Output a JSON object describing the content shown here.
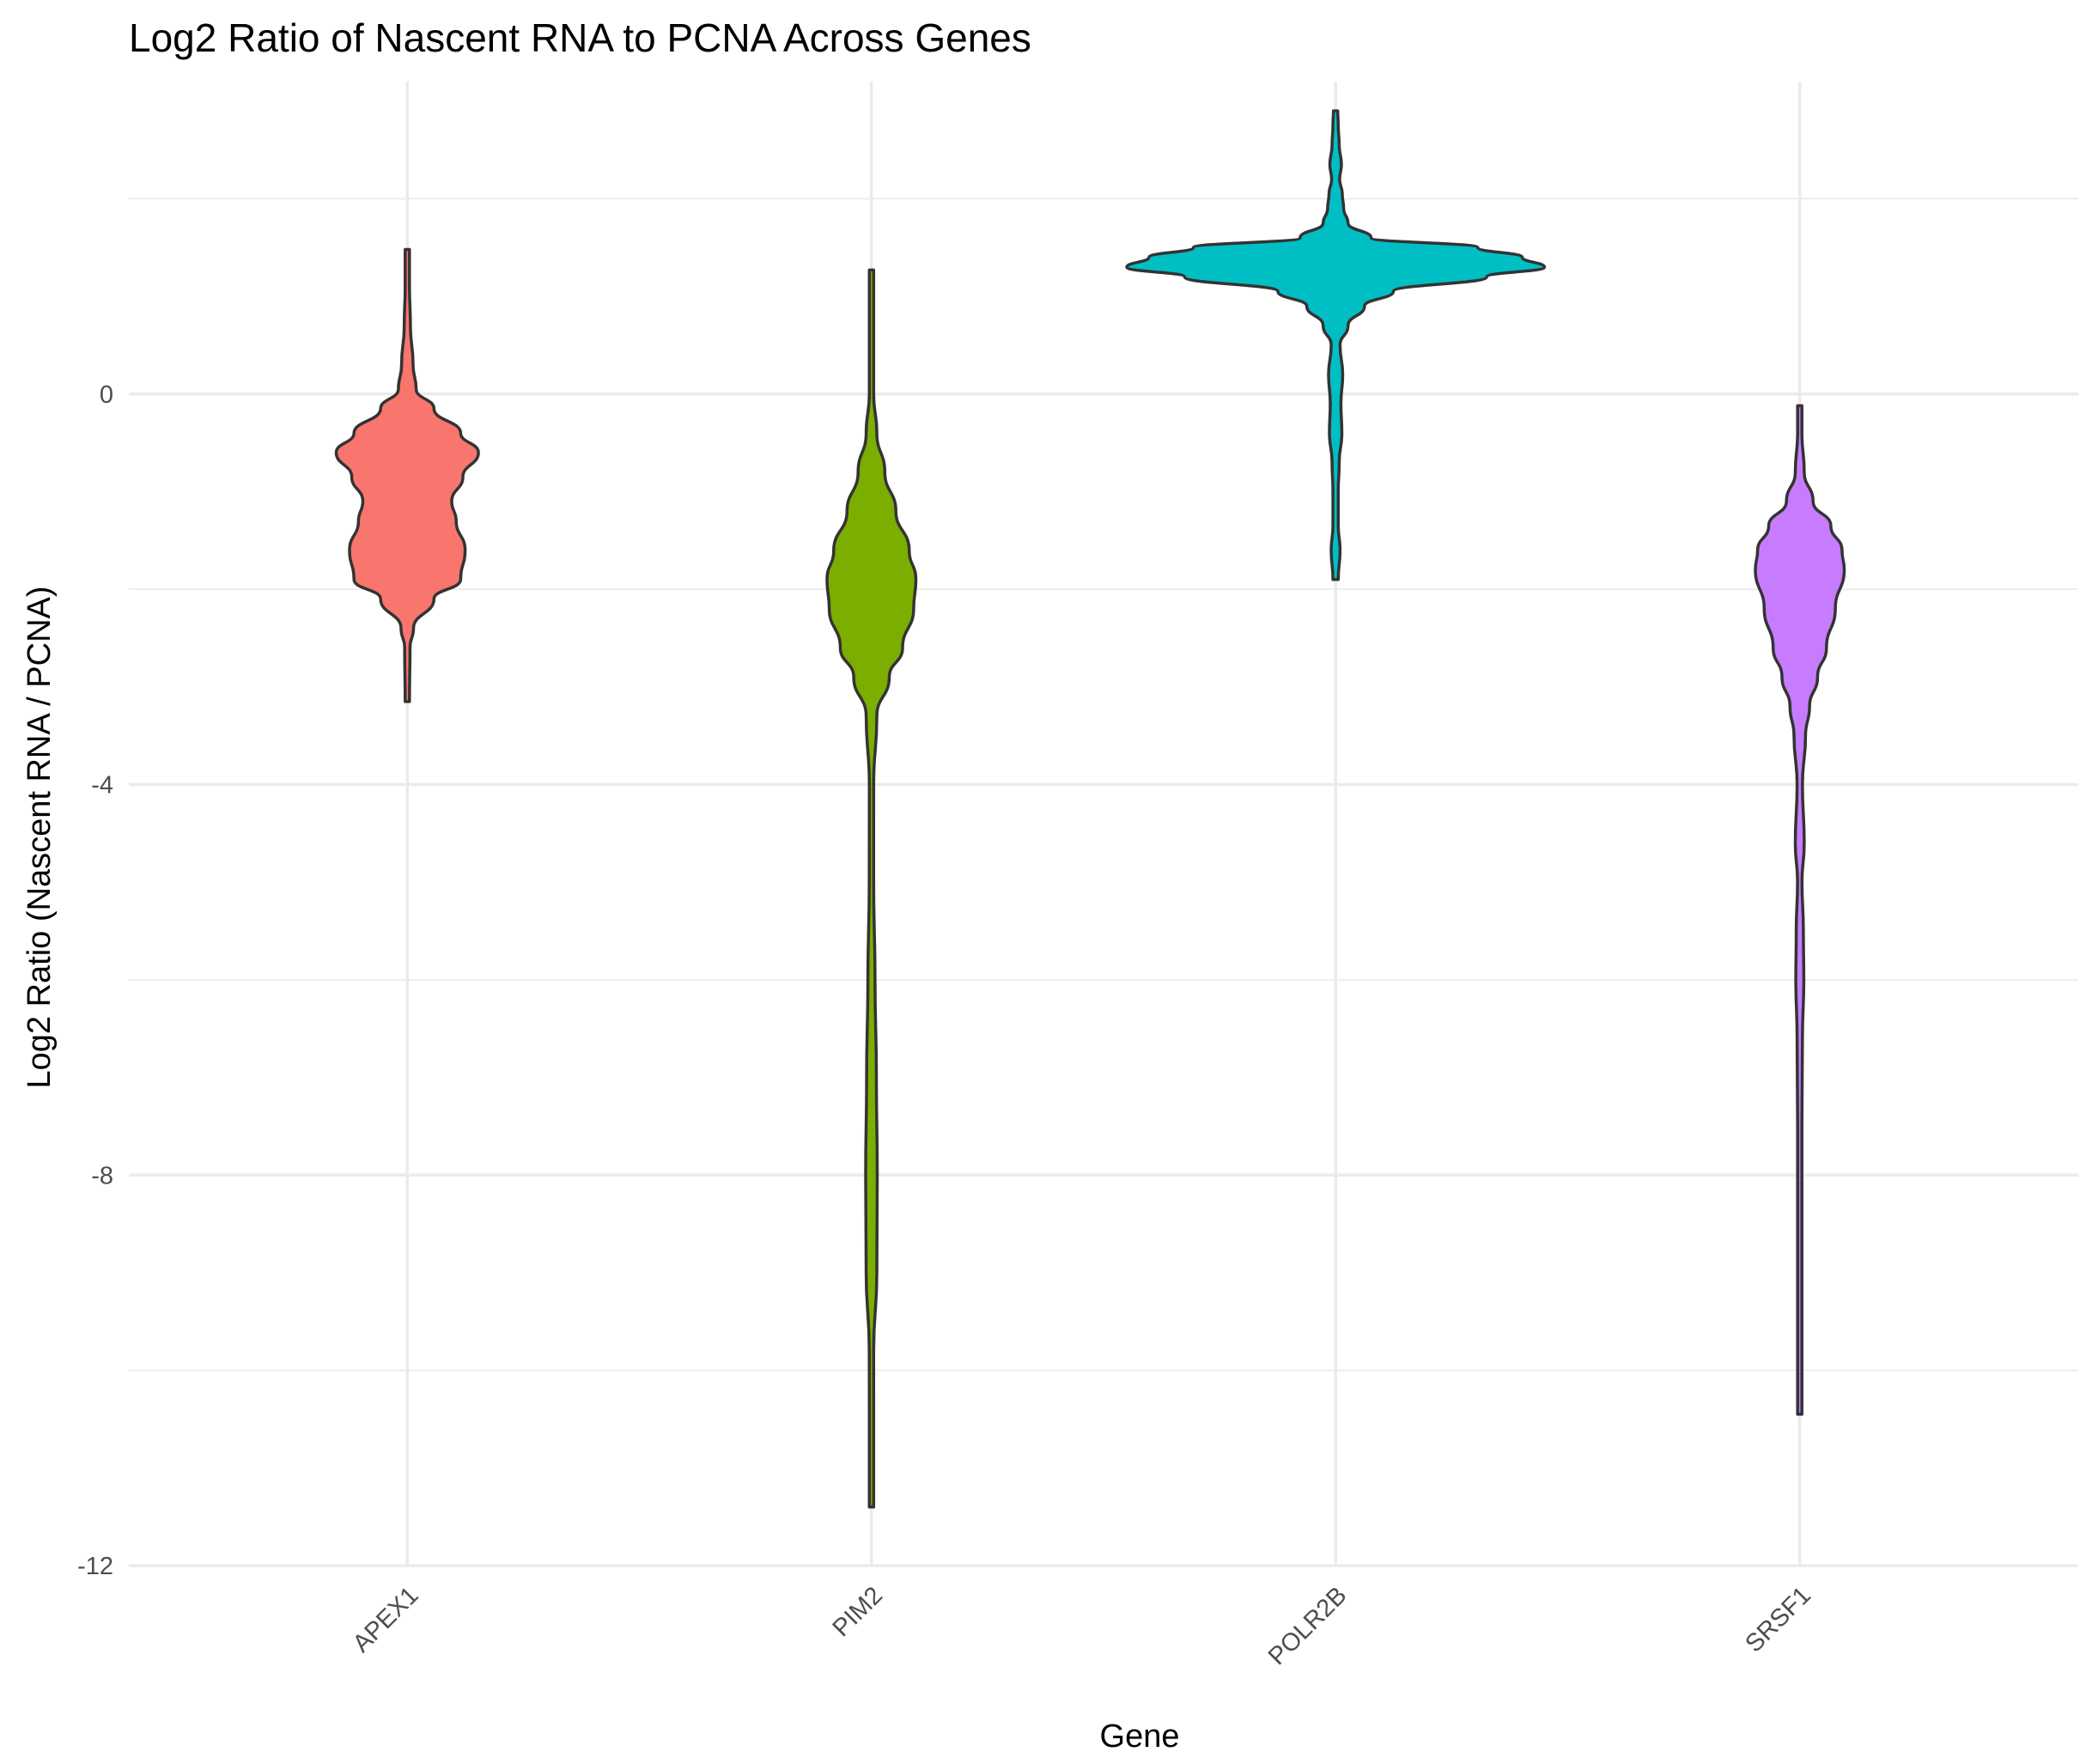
{
  "chart_data": {
    "type": "violin",
    "title": "Log2 Ratio of Nascent RNA to PCNA Across Genes",
    "xlabel": "Gene",
    "ylabel": "Log2 Ratio (Nascent RNA / PCNA)",
    "ylim": [
      -12,
      3.2
    ],
    "yticks": [
      0,
      -4,
      -8,
      -12
    ],
    "yticks_minor": [
      2,
      -2,
      -6,
      -10
    ],
    "grid": true,
    "legend": "none",
    "categories": [
      "APEX1",
      "PIM2",
      "POLR2B",
      "SRSF1"
    ],
    "series": [
      {
        "category": "APEX1",
        "color": "#F8766D",
        "min": -3.15,
        "max": 1.48,
        "density": [
          [
            -3.15,
            0.003
          ],
          [
            -2.6,
            0.006
          ],
          [
            -2.4,
            0.014
          ],
          [
            -2.1,
            0.06
          ],
          [
            -1.9,
            0.12
          ],
          [
            -1.6,
            0.13
          ],
          [
            -1.3,
            0.11
          ],
          [
            -1.1,
            0.1
          ],
          [
            -0.85,
            0.125
          ],
          [
            -0.6,
            0.16
          ],
          [
            -0.4,
            0.12
          ],
          [
            -0.15,
            0.06
          ],
          [
            0.05,
            0.02
          ],
          [
            0.3,
            0.013
          ],
          [
            0.7,
            0.007
          ],
          [
            1.1,
            0.004
          ],
          [
            1.48,
            0.002
          ]
        ]
      },
      {
        "category": "PIM2",
        "color": "#7CAE00",
        "min": -11.4,
        "max": 1.27,
        "density": [
          [
            -11.4,
            0.003
          ],
          [
            -10.5,
            0.003
          ],
          [
            -9.8,
            0.005
          ],
          [
            -9.0,
            0.012
          ],
          [
            -8.0,
            0.013
          ],
          [
            -7.0,
            0.011
          ],
          [
            -6.0,
            0.008
          ],
          [
            -5.0,
            0.005
          ],
          [
            -4.0,
            0.004
          ],
          [
            -3.3,
            0.012
          ],
          [
            -2.9,
            0.04
          ],
          [
            -2.6,
            0.07
          ],
          [
            -2.2,
            0.095
          ],
          [
            -1.9,
            0.1
          ],
          [
            -1.6,
            0.085
          ],
          [
            -1.2,
            0.055
          ],
          [
            -0.8,
            0.03
          ],
          [
            -0.4,
            0.012
          ],
          [
            0.0,
            0.004
          ],
          [
            0.6,
            0.002
          ],
          [
            1.27,
            0.0015
          ]
        ]
      },
      {
        "category": "POLR2B",
        "color": "#00BFC4",
        "min": -1.9,
        "max": 2.9,
        "density": [
          [
            -1.9,
            0.006
          ],
          [
            -1.6,
            0.01
          ],
          [
            -1.35,
            0.006
          ],
          [
            -1.0,
            0.006
          ],
          [
            -0.7,
            0.008
          ],
          [
            -0.4,
            0.014
          ],
          [
            -0.1,
            0.012
          ],
          [
            0.2,
            0.016
          ],
          [
            0.5,
            0.01
          ],
          [
            0.7,
            0.028
          ],
          [
            0.9,
            0.065
          ],
          [
            1.05,
            0.13
          ],
          [
            1.2,
            0.34
          ],
          [
            1.3,
            0.47
          ],
          [
            1.4,
            0.42
          ],
          [
            1.5,
            0.32
          ],
          [
            1.6,
            0.08
          ],
          [
            1.75,
            0.028
          ],
          [
            1.9,
            0.018
          ],
          [
            2.05,
            0.015
          ],
          [
            2.2,
            0.009
          ],
          [
            2.35,
            0.013
          ],
          [
            2.55,
            0.008
          ],
          [
            2.75,
            0.006
          ],
          [
            2.9,
            0.003
          ]
        ]
      },
      {
        "category": "SRSF1",
        "color": "#C77CFF",
        "min": -10.45,
        "max": -0.12,
        "density": [
          [
            -10.45,
            0.002
          ],
          [
            -9.4,
            0.003
          ],
          [
            -8.5,
            0.002
          ],
          [
            -7.5,
            0.002
          ],
          [
            -6.6,
            0.006
          ],
          [
            -6.0,
            0.009
          ],
          [
            -5.5,
            0.008
          ],
          [
            -5.0,
            0.005
          ],
          [
            -4.6,
            0.01
          ],
          [
            -4.0,
            0.006
          ],
          [
            -3.5,
            0.013
          ],
          [
            -3.2,
            0.022
          ],
          [
            -2.9,
            0.04
          ],
          [
            -2.6,
            0.06
          ],
          [
            -2.2,
            0.08
          ],
          [
            -1.8,
            0.1
          ],
          [
            -1.6,
            0.095
          ],
          [
            -1.35,
            0.07
          ],
          [
            -1.1,
            0.03
          ],
          [
            -0.8,
            0.01
          ],
          [
            -0.4,
            0.003
          ],
          [
            -0.12,
            0.002
          ]
        ]
      }
    ]
  }
}
